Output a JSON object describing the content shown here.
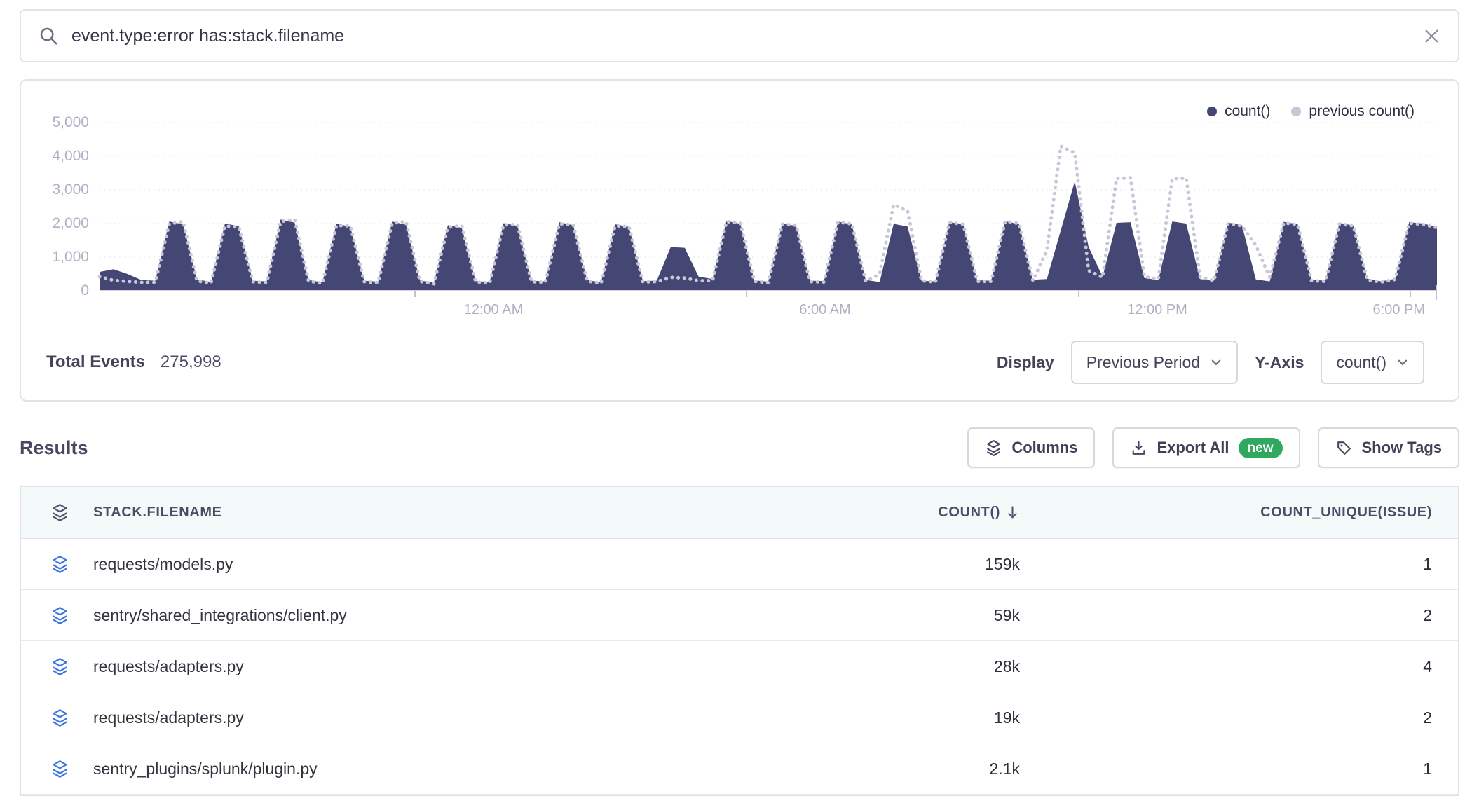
{
  "search": {
    "query": "event.type:error has:stack.filename"
  },
  "chart_panel": {
    "legend": [
      {
        "label": "count()",
        "color": "#444674"
      },
      {
        "label": "previous count()",
        "color": "#c9c6d8"
      }
    ],
    "y_ticks": [
      "5,000",
      "4,000",
      "3,000",
      "2,000",
      "1,000",
      "0"
    ],
    "x_ticks": [
      "12:00 AM",
      "6:00 AM",
      "12:00 PM",
      "6:00 PM"
    ],
    "total_events_label": "Total Events",
    "total_events_value": "275,998",
    "display_label": "Display",
    "display_value": "Previous Period",
    "yaxis_label": "Y-Axis",
    "yaxis_value": "count()"
  },
  "chart_data": {
    "type": "area",
    "title": "",
    "ylabel": "count()",
    "ylim": [
      0,
      5000
    ],
    "y_tick_values": [
      0,
      1000,
      2000,
      3000,
      4000,
      5000
    ],
    "x_ticks": [
      "12:00 AM",
      "6:00 AM",
      "12:00 PM",
      "6:00 PM"
    ],
    "x_tick_pos": [
      0.2359,
      0.4838,
      0.7322,
      0.9801
    ],
    "x_span": "24 hour window, hourly spikes, sampled every 15 minutes",
    "legend_position": "top-right",
    "grid": "horizontal-dashed",
    "series": [
      {
        "name": "count()",
        "style": "filled-area",
        "color": "#444674",
        "values": [
          560,
          640,
          500,
          320,
          300,
          2060,
          1980,
          340,
          260,
          2000,
          1920,
          300,
          280,
          2120,
          2030,
          320,
          250,
          2000,
          1900,
          300,
          270,
          2060,
          1960,
          310,
          240,
          1950,
          1870,
          290,
          260,
          2010,
          1930,
          300,
          280,
          2040,
          1950,
          320,
          250,
          1980,
          1900,
          290,
          300,
          1300,
          1280,
          420,
          350,
          2080,
          1990,
          310,
          270,
          2000,
          1930,
          300,
          290,
          2060,
          1970,
          320,
          260,
          1990,
          1910,
          300,
          280,
          2050,
          1960,
          310,
          300,
          2070,
          1980,
          330,
          350,
          1800,
          3250,
          1300,
          420,
          2020,
          2040,
          380,
          320,
          2060,
          2000,
          350,
          300,
          2030,
          1950,
          340,
          280,
          2050,
          1980,
          330,
          300,
          2020,
          1940,
          360,
          280,
          360,
          2040,
          2000,
          1900
        ]
      },
      {
        "name": "previous count()",
        "style": "dotted-line",
        "color": "#c9c6d8",
        "values": [
          420,
          310,
          280,
          250,
          250,
          1990,
          2060,
          290,
          230,
          1930,
          1890,
          270,
          240,
          2060,
          2120,
          290,
          220,
          1940,
          1930,
          270,
          240,
          2010,
          2060,
          280,
          210,
          1890,
          1940,
          260,
          230,
          1960,
          1970,
          270,
          250,
          1990,
          1960,
          290,
          220,
          1930,
          1910,
          260,
          270,
          400,
          380,
          300,
          300,
          2060,
          2010,
          280,
          240,
          1980,
          1950,
          270,
          260,
          2040,
          1990,
          280,
          500,
          2560,
          2380,
          300,
          260,
          2030,
          1980,
          280,
          280,
          2060,
          2000,
          300,
          1200,
          4300,
          4100,
          600,
          400,
          3340,
          3360,
          420,
          350,
          3330,
          3350,
          400,
          300,
          2000,
          1930,
          1350,
          400,
          2020,
          1960,
          300,
          280,
          1990,
          1930,
          320,
          260,
          340,
          2010,
          1970,
          1880
        ]
      }
    ]
  },
  "results": {
    "heading": "Results",
    "buttons": {
      "columns": "Columns",
      "export_all": "Export All",
      "export_badge": "new",
      "show_tags": "Show Tags"
    },
    "table": {
      "columns": {
        "filename": "STACK.FILENAME",
        "count": "COUNT()",
        "unique": "COUNT_UNIQUE(ISSUE)"
      },
      "sort": "COUNT() descending",
      "rows": [
        {
          "filename": "requests/models.py",
          "count": "159k",
          "unique": "1"
        },
        {
          "filename": "sentry/shared_integrations/client.py",
          "count": "59k",
          "unique": "2"
        },
        {
          "filename": "requests/adapters.py",
          "count": "28k",
          "unique": "4"
        },
        {
          "filename": "requests/adapters.py",
          "count": "19k",
          "unique": "2"
        },
        {
          "filename": "sentry_plugins/splunk/plugin.py",
          "count": "2.1k",
          "unique": "1"
        }
      ]
    }
  },
  "colors": {
    "series_current": "#444674",
    "series_previous": "#c9c6d8",
    "badge_green": "#31a85f",
    "row_icon_blue": "#3e77dd",
    "tick_label": "#b2afc5",
    "border": "#e2dfe9",
    "table_header_bg": "#f4f9f9"
  }
}
